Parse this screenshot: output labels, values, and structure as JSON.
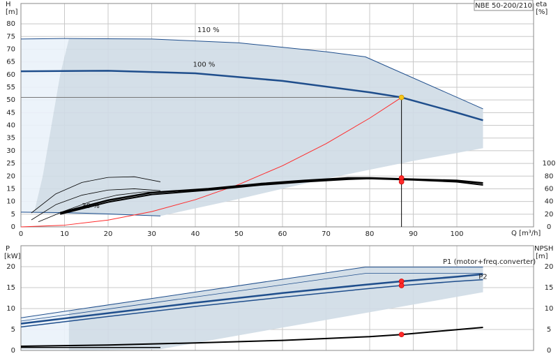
{
  "chart_data": [
    {
      "type": "line",
      "title": "NBE 50-200/210",
      "x_label": "Q [m³/h]",
      "y_label_name": "H",
      "y_label_unit": "[m]",
      "y2_label_name": "eta",
      "y2_label_unit": "[%]",
      "xlim": [
        0,
        117.6
      ],
      "xticks": [
        0,
        10,
        20,
        30,
        40,
        50,
        60,
        70,
        80,
        90,
        100
      ],
      "ylim": [
        0,
        88
      ],
      "yticks": [
        0,
        5,
        10,
        15,
        20,
        25,
        30,
        35,
        40,
        45,
        50,
        55,
        60,
        65,
        70,
        75,
        80
      ],
      "y2lim": [
        0,
        352
      ],
      "y2ticks": [
        0,
        20,
        40,
        60,
        80,
        100
      ],
      "grid": true,
      "areas": [
        {
          "color": "#eaf2fa",
          "x": [
            0,
            11,
            9,
            7,
            5,
            3,
            0
          ],
          "values": [
            74,
            74,
            60,
            40,
            20,
            5.5,
            5.5
          ]
        },
        {
          "color": "#cfdbe6",
          "x": [
            11,
            30,
            50,
            70,
            79,
            106,
            106,
            90,
            70,
            50,
            32,
            15,
            3,
            5,
            7,
            9
          ],
          "values": [
            74,
            74,
            72.5,
            69,
            67,
            46.5,
            31,
            26,
            19,
            11,
            4.3,
            5,
            5.5,
            20,
            40,
            60
          ]
        }
      ],
      "series": [
        {
          "name": "110 %",
          "color": "#1f4e8c",
          "width": 1,
          "x": [
            0,
            10,
            30,
            50,
            70,
            79,
            106
          ],
          "values": [
            74,
            74.2,
            74,
            72.5,
            69,
            67,
            46.5
          ]
        },
        {
          "name": "100 %",
          "color": "#1f4e8c",
          "width": 2.5,
          "x": [
            0,
            20,
            40,
            60,
            80,
            87.3,
            100,
            106
          ],
          "values": [
            61.3,
            61.5,
            60.5,
            57.5,
            53,
            51,
            45,
            42
          ]
        },
        {
          "name": "30 %",
          "color": "#1f4e8c",
          "width": 1,
          "x": [
            0,
            10,
            20,
            32
          ],
          "values": [
            5.8,
            5.6,
            5.1,
            4.3
          ]
        },
        {
          "color": "#ff2a2a",
          "width": 1,
          "x": [
            0,
            10,
            20,
            30,
            40,
            50,
            60,
            70,
            80,
            87.3
          ],
          "values": [
            0,
            0.67,
            2.68,
            6.02,
            10.71,
            16.73,
            24.09,
            32.79,
            42.83,
            51
          ]
        },
        {
          "color": "#000000",
          "width": 2.5,
          "axis": "y2",
          "x": [
            9,
            20,
            30,
            43,
            55,
            65,
            75,
            80,
            90,
            100,
            106
          ],
          "values": [
            22,
            42,
            54,
            60,
            68,
            73,
            77,
            77,
            75,
            73,
            69
          ]
        },
        {
          "color": "#000000",
          "width": 2,
          "axis": "y2",
          "x": [
            9,
            20,
            30,
            43,
            55,
            65,
            75,
            80,
            90,
            100,
            106
          ],
          "values": [
            20,
            39,
            51,
            58,
            66,
            71,
            75,
            76,
            74,
            71,
            66
          ]
        },
        {
          "color": "#000000",
          "width": 0.8,
          "axis": "y2",
          "x": [
            2.4,
            8,
            14,
            20,
            26,
            32
          ],
          "values": [
            22,
            52,
            70,
            78,
            79,
            71
          ]
        },
        {
          "color": "#000000",
          "width": 0.8,
          "axis": "y2",
          "x": [
            2.4,
            8,
            14,
            20,
            26,
            32
          ],
          "values": [
            11,
            35,
            50,
            58,
            60,
            57
          ]
        },
        {
          "color": "#000000",
          "width": 0.8,
          "axis": "y2",
          "x": [
            4,
            10,
            16,
            22,
            28,
            32
          ],
          "values": [
            8,
            25,
            40,
            50,
            55,
            55
          ]
        }
      ],
      "points": [
        {
          "x": 87.3,
          "value": 51,
          "color": "#f5c518"
        },
        {
          "x": 87.3,
          "value": 77,
          "axis": "y2",
          "color": "#ff2a2a"
        },
        {
          "x": 87.3,
          "value": 71,
          "axis": "y2",
          "color": "#ff2a2a"
        }
      ]
    },
    {
      "type": "line",
      "y_label_name": "P",
      "y_label_unit": "[kW]",
      "y2_label_name": "NPSH",
      "y2_label_unit": "[m]",
      "ylim": [
        0,
        25
      ],
      "yticks": [
        0,
        5,
        10,
        15,
        20
      ],
      "y2lim": [
        0,
        25
      ],
      "y2ticks": [
        0,
        5,
        10,
        15,
        20
      ],
      "grid": true,
      "areas": [
        {
          "color": "#eaf2fa",
          "x": [
            0,
            11,
            11,
            0
          ],
          "values": [
            7.7,
            9.4,
            0,
            0
          ]
        },
        {
          "color": "#cfdbe6",
          "x": [
            11,
            79,
            106,
            106,
            32,
            11
          ],
          "values": [
            9.4,
            19.9,
            19.9,
            13.9,
            0.3,
            0
          ]
        }
      ],
      "series": [
        {
          "name": "P1 (motor+freq.converter)",
          "color": "#1f4e8c",
          "width": 2.5,
          "x": [
            0,
            20,
            40,
            60,
            80,
            87.3,
            100,
            106
          ],
          "values": [
            6.4,
            8.9,
            11.4,
            13.7,
            15.8,
            16.5,
            17.6,
            18.2
          ]
        },
        {
          "name": "P2",
          "color": "#1f4e8c",
          "width": 1.5,
          "x": [
            0,
            20,
            40,
            60,
            80,
            87.3,
            100,
            106
          ],
          "values": [
            5.6,
            8.1,
            10.5,
            12.7,
            14.8,
            15.5,
            16.5,
            16.9
          ]
        },
        {
          "color": "#1f4e8c",
          "width": 1,
          "x": [
            0,
            79,
            106
          ],
          "values": [
            7.8,
            19.9,
            19.9
          ]
        },
        {
          "color": "#1f4e8c",
          "width": 0.8,
          "x": [
            0,
            79,
            106
          ],
          "values": [
            7.0,
            18.4,
            18.4
          ]
        },
        {
          "color": "#000000",
          "width": 2,
          "axis": "y2",
          "x": [
            0,
            20,
            40,
            60,
            80,
            87.3,
            106
          ],
          "values": [
            1.0,
            1.3,
            1.8,
            2.4,
            3.3,
            3.8,
            5.5
          ]
        },
        {
          "color": "#000000",
          "width": 1.5,
          "axis": "y2",
          "x": [
            0,
            32
          ],
          "values": [
            0.7,
            0.7
          ]
        }
      ],
      "points": [
        {
          "x": 87.3,
          "value": 16.5,
          "color": "#ff2a2a"
        },
        {
          "x": 87.3,
          "value": 15.5,
          "color": "#ff2a2a"
        },
        {
          "x": 87.3,
          "value": 3.8,
          "axis": "y2",
          "color": "#ff2a2a"
        }
      ]
    }
  ]
}
